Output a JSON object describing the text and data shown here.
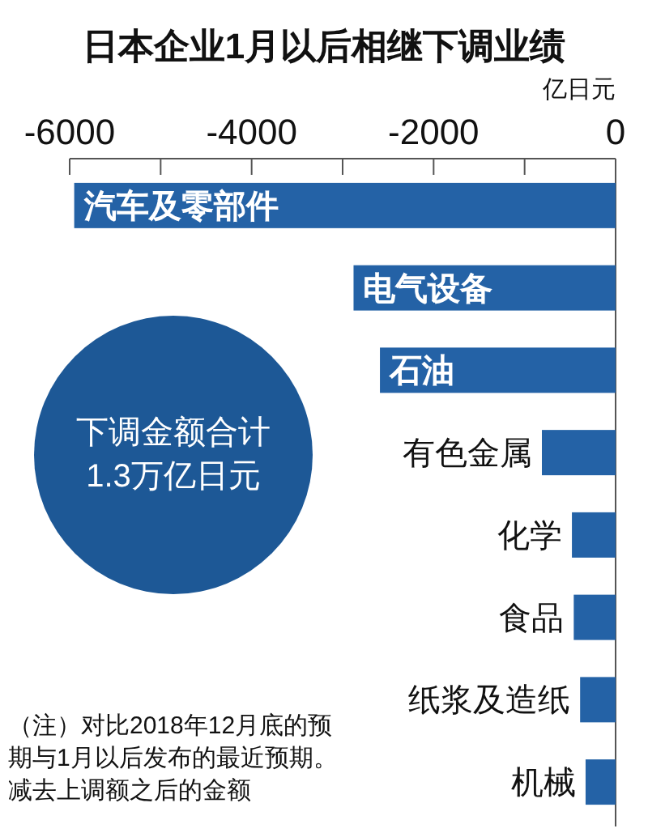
{
  "chart_data": {
    "type": "bar",
    "orientation": "horizontal",
    "title": "日本企业1月以后相继下调业绩",
    "xlabel": "亿日元",
    "categories": [
      "汽车及零部件",
      "电气设备",
      "石油",
      "有色金属",
      "化学",
      "食品",
      "纸浆及造纸",
      "机械"
    ],
    "values": [
      -5950,
      -2880,
      -2590,
      -810,
      -480,
      -460,
      -390,
      -330
    ],
    "color": "#2462a6",
    "xlim": [
      -6000,
      0
    ],
    "xticks": [
      -6000,
      {
        "value": -5000,
        "label": null
      },
      -4000,
      {
        "value": -3000,
        "label": null
      },
      -2000,
      {
        "value": -1000,
        "label": null
      },
      0
    ],
    "annotations": [
      "下调金额合计",
      "1.3万亿日元",
      "（注）对比2018年12月底的预期与1月以后发布的最近预期。减去上调额之后的金额"
    ]
  }
}
